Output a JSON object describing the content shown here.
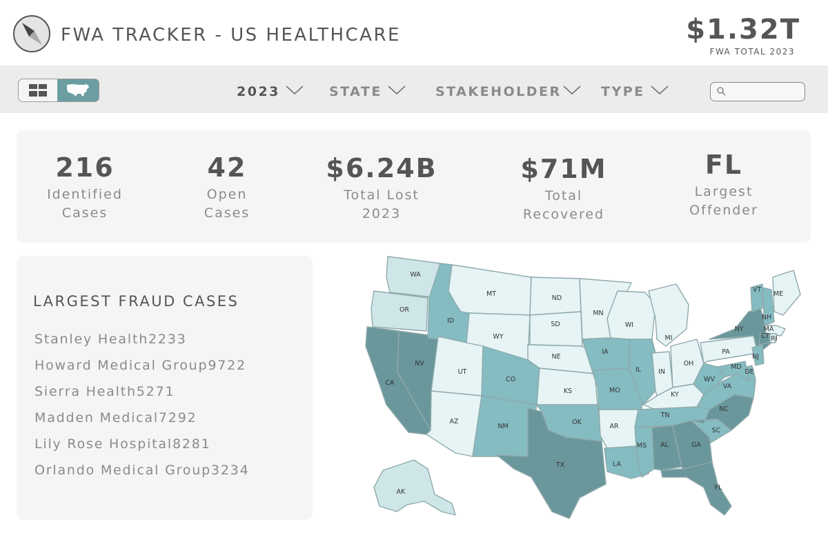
{
  "header": {
    "title": "FWA TRACKER - US HEALTHCARE",
    "logo_icon": "compass-icon",
    "total_value": "$1.32T",
    "total_label": "FWA TOTAL 2023"
  },
  "toolbar": {
    "view_toggle": {
      "grid_icon": "grid-view-icon",
      "map_icon": "us-map-icon",
      "active": "map"
    },
    "filters": [
      {
        "label": "2023",
        "icon": "chevron-down-icon"
      },
      {
        "label": "STATE",
        "icon": "chevron-down-icon"
      },
      {
        "label": "STAKEHOLDER",
        "icon": "chevron-down-icon"
      },
      {
        "label": "TYPE",
        "icon": "chevron-down-icon"
      }
    ],
    "search": {
      "value": "",
      "placeholder": "",
      "icon": "search-icon"
    }
  },
  "stats": [
    {
      "value": "216",
      "label": "Identified\nCases"
    },
    {
      "value": "42",
      "label": "Open\nCases"
    },
    {
      "value": "$6.24B",
      "label": "Total Lost\n2023"
    },
    {
      "value": "$71M",
      "label": "Total\nRecovered"
    },
    {
      "value": "FL",
      "label": "Largest\nOffender"
    }
  ],
  "cases": {
    "title": "LARGEST FRAUD CASES",
    "items": [
      "Stanley Health2233",
      "Howard Medical Group9722",
      "Sierra Health5271",
      "Madden Medical7292",
      "Lily Rose Hospital8281",
      "Orlando Medical Group3234"
    ]
  },
  "colors": {
    "accent": "#6c9ea1",
    "level_1": "#e6f4f5",
    "level_2": "#cfe6e8",
    "level_3": "#84bcc2",
    "level_4": "#6a979b",
    "panel_bg": "#f5f5f5",
    "toolbar_bg": "#ececec"
  },
  "map": {
    "states": {
      "WA": 2,
      "OR": 2,
      "CA": 4,
      "NV": 4,
      "ID": 3,
      "MT": 1,
      "WY": 1,
      "UT": 1,
      "AZ": 1,
      "CO": 3,
      "NM": 3,
      "ND": 1,
      "SD": 1,
      "NE": 1,
      "KS": 1,
      "OK": 3,
      "TX": 4,
      "MN": 1,
      "IA": 3,
      "MO": 3,
      "AR": 1,
      "LA": 3,
      "WI": 1,
      "IL": 3,
      "MI": 1,
      "IN": 1,
      "OH": 1,
      "KY": 1,
      "TN": 3,
      "MS": 3,
      "AL": 4,
      "GA": 4,
      "FL": 4,
      "SC": 3,
      "NC": 4,
      "VA": 3,
      "WV": 3,
      "PA": 1,
      "NY": 4,
      "VT": 3,
      "NH": 3,
      "ME": 1,
      "MA": 1,
      "CT": 4,
      "RI": 1,
      "NJ": 3,
      "DE": 3,
      "MD": 3,
      "AK": 2
    }
  }
}
